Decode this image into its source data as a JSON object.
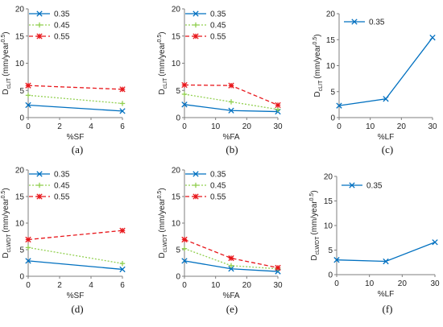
{
  "colors": {
    "s035": "#0070c0",
    "s045": "#92d050",
    "s055": "#e8161b",
    "axis": "#7f7f7f"
  },
  "chart_data": [
    {
      "type": "line",
      "panel": "(a)",
      "ylabel_main": "D",
      "ylabel_sub": "cLIT",
      "ylabel_unit": "(mm/year",
      "ylabel_sup": "0.5",
      "ylabel_close": ")",
      "xlabel": "%SF",
      "x": [
        0,
        6
      ],
      "xlim": [
        0,
        6
      ],
      "xticks": [
        0,
        2,
        4,
        6
      ],
      "ylim": [
        0,
        20
      ],
      "yticks": [
        0,
        5,
        10,
        15,
        20
      ],
      "legend_position": "top-left",
      "series": [
        {
          "name": "0.35",
          "values": [
            2.3,
            1.2
          ],
          "style": "s035"
        },
        {
          "name": "0.45",
          "values": [
            4.1,
            2.6
          ],
          "style": "s045"
        },
        {
          "name": "0.55",
          "values": [
            5.9,
            5.2
          ],
          "style": "s055"
        }
      ]
    },
    {
      "type": "line",
      "panel": "(b)",
      "ylabel_main": "D",
      "ylabel_sub": "cLIT",
      "ylabel_unit": "(mm/year",
      "ylabel_sup": "0.5",
      "ylabel_close": ")",
      "xlabel": "%FA",
      "x": [
        0,
        15,
        30
      ],
      "xlim": [
        0,
        30
      ],
      "xticks": [
        0,
        10,
        20,
        30
      ],
      "ylim": [
        0,
        20
      ],
      "yticks": [
        0,
        5,
        10,
        15,
        20
      ],
      "legend_position": "top-left",
      "series": [
        {
          "name": "0.35",
          "values": [
            2.4,
            1.3,
            1.1
          ],
          "style": "s035"
        },
        {
          "name": "0.45",
          "values": [
            4.3,
            2.9,
            1.5
          ],
          "style": "s045"
        },
        {
          "name": "0.55",
          "values": [
            6.0,
            5.9,
            2.3
          ],
          "style": "s055"
        }
      ]
    },
    {
      "type": "line",
      "panel": "(c)",
      "ylabel_main": "D",
      "ylabel_sub": "cLIT",
      "ylabel_unit": "(mm/year",
      "ylabel_sup": "0.5",
      "ylabel_close": ")",
      "xlabel": "%LF",
      "x": [
        0,
        15,
        30
      ],
      "xlim": [
        0,
        30
      ],
      "xticks": [
        0,
        10,
        20,
        30
      ],
      "ylim": [
        0,
        20
      ],
      "yticks": [
        0,
        5,
        10,
        15,
        20
      ],
      "legend_position": "top-left",
      "series": [
        {
          "name": "0.35",
          "values": [
            2.3,
            3.6,
            15.4
          ],
          "style": "s035"
        }
      ]
    },
    {
      "type": "line",
      "panel": "(d)",
      "ylabel_main": "D",
      "ylabel_sub": "cLWDT",
      "ylabel_unit": "(mm/year",
      "ylabel_sup": "0.5",
      "ylabel_close": ")",
      "xlabel": "%SF",
      "x": [
        0,
        6
      ],
      "xlim": [
        0,
        6
      ],
      "xticks": [
        0,
        2,
        4,
        6
      ],
      "ylim": [
        0,
        20
      ],
      "yticks": [
        0,
        5,
        10,
        15,
        20
      ],
      "legend_position": "top-left",
      "series": [
        {
          "name": "0.35",
          "values": [
            2.9,
            1.3
          ],
          "style": "s035"
        },
        {
          "name": "0.45",
          "values": [
            5.4,
            2.4
          ],
          "style": "s045"
        },
        {
          "name": "0.55",
          "values": [
            6.9,
            8.6
          ],
          "style": "s055"
        }
      ]
    },
    {
      "type": "line",
      "panel": "(e)",
      "ylabel_main": "D",
      "ylabel_sub": "cLWDT",
      "ylabel_unit": "(mm/year",
      "ylabel_sup": "0.5",
      "ylabel_close": ")",
      "xlabel": "%FA",
      "x": [
        0,
        15,
        30
      ],
      "xlim": [
        0,
        30
      ],
      "xticks": [
        0,
        10,
        20,
        30
      ],
      "ylim": [
        0,
        20
      ],
      "yticks": [
        0,
        5,
        10,
        15,
        20
      ],
      "legend_position": "top-left",
      "series": [
        {
          "name": "0.35",
          "values": [
            2.9,
            1.4,
            0.9
          ],
          "style": "s035"
        },
        {
          "name": "0.45",
          "values": [
            5.2,
            2.0,
            1.4
          ],
          "style": "s045"
        },
        {
          "name": "0.55",
          "values": [
            6.9,
            3.4,
            1.6
          ],
          "style": "s055"
        }
      ]
    },
    {
      "type": "line",
      "panel": "(f)",
      "ylabel_main": "D",
      "ylabel_sub": "cLWDT",
      "ylabel_unit": "(mm/year",
      "ylabel_sup": "0.5",
      "ylabel_close": ")",
      "xlabel": "%LF",
      "x": [
        0,
        15,
        30
      ],
      "xlim": [
        0,
        30
      ],
      "xticks": [
        0,
        10,
        20,
        30
      ],
      "ylim": [
        0,
        20
      ],
      "yticks": [
        0,
        5,
        10,
        15,
        20
      ],
      "legend_position": "top-left",
      "series": [
        {
          "name": "0.35",
          "values": [
            3.0,
            2.7,
            6.6
          ],
          "style": "s035"
        }
      ]
    }
  ]
}
